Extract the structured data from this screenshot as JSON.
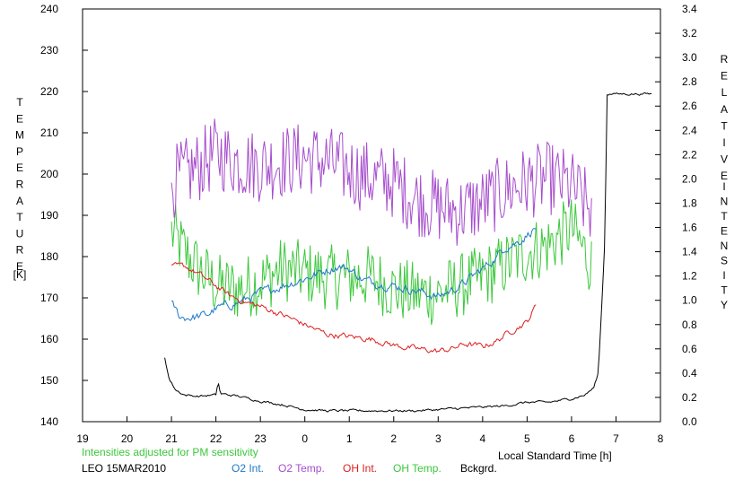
{
  "chart_data": {
    "type": "line",
    "x_axis": {
      "label": "Local Standard Time [h]",
      "range": [
        19,
        32
      ],
      "ticks": [
        "19",
        "20",
        "21",
        "22",
        "23",
        "0",
        "1",
        "2",
        "3",
        "4",
        "5",
        "6",
        "7",
        "8"
      ]
    },
    "y_left": {
      "label": [
        "T",
        "E",
        "M",
        "P",
        "E",
        "R",
        "A",
        "T",
        "U",
        "R",
        "E"
      ],
      "unit": "[K]",
      "range": [
        140,
        240
      ],
      "ticks": [
        "140",
        "150",
        "160",
        "170",
        "180",
        "190",
        "200",
        "210",
        "220",
        "230",
        "240"
      ]
    },
    "y_right": {
      "label": [
        "R",
        "E",
        "L",
        "A",
        "T",
        "I",
        "V",
        "E"
      ],
      "label2": [
        "I",
        "N",
        "T",
        "E",
        "N",
        "S",
        "I",
        "T",
        "Y"
      ],
      "range": [
        0,
        3.4
      ],
      "ticks": [
        "0.0",
        "0.2",
        "0.4",
        "0.6",
        "0.8",
        "1.0",
        "1.2",
        "1.4",
        "1.6",
        "1.8",
        "2.0",
        "2.2",
        "2.4",
        "2.6",
        "2.8",
        "3.0",
        "3.2",
        "3.4"
      ]
    },
    "note": "Intensities adjusted for PM sensitivity",
    "station": "LEO 15MAR2010",
    "legend": [
      {
        "name": "O2 Int.",
        "color": "#1f78c8"
      },
      {
        "name": "O2 Temp.",
        "color": "#a64dcc"
      },
      {
        "name": "OH Int.",
        "color": "#dd2020"
      },
      {
        "name": "OH Temp.",
        "color": "#3cc83c"
      },
      {
        "name": "Bckgrd.",
        "color": "#000000"
      }
    ],
    "series": [
      {
        "name": "O2 Temp.",
        "axis": "left",
        "color": "#a64dcc",
        "x_range": [
          21.0,
          30.45
        ],
        "points": [
          [
            21.0,
            198
          ],
          [
            21.5,
            201
          ],
          [
            22.0,
            205
          ],
          [
            22.5,
            203
          ],
          [
            23.0,
            202
          ],
          [
            23.5,
            203
          ],
          [
            24.0,
            204
          ],
          [
            24.5,
            203
          ],
          [
            25.0,
            201
          ],
          [
            25.5,
            199
          ],
          [
            26.0,
            198
          ],
          [
            26.5,
            194
          ],
          [
            27.0,
            192
          ],
          [
            27.5,
            191
          ],
          [
            28.0,
            193
          ],
          [
            28.5,
            196
          ],
          [
            29.0,
            198
          ],
          [
            29.5,
            199
          ],
          [
            30.0,
            197
          ],
          [
            30.45,
            191
          ]
        ],
        "jitter": 9
      },
      {
        "name": "OH Temp.",
        "axis": "left",
        "color": "#3cc83c",
        "x_range": [
          21.0,
          30.45
        ],
        "points": [
          [
            21.0,
            186
          ],
          [
            21.3,
            181
          ],
          [
            21.6,
            177
          ],
          [
            22.0,
            173
          ],
          [
            22.5,
            172
          ],
          [
            23.0,
            174
          ],
          [
            23.5,
            177
          ],
          [
            24.0,
            176
          ],
          [
            24.5,
            175
          ],
          [
            25.0,
            175
          ],
          [
            25.5,
            175
          ],
          [
            26.0,
            172
          ],
          [
            26.5,
            171
          ],
          [
            27.0,
            171
          ],
          [
            27.5,
            173
          ],
          [
            28.0,
            175
          ],
          [
            28.5,
            178
          ],
          [
            29.0,
            181
          ],
          [
            29.5,
            183
          ],
          [
            30.0,
            187
          ],
          [
            30.45,
            178
          ]
        ],
        "jitter": 8
      },
      {
        "name": "O2 Int.",
        "axis": "right",
        "color": "#1f78c8",
        "x_range": [
          21.0,
          29.2
        ],
        "points": [
          [
            21.0,
            0.97
          ],
          [
            21.2,
            0.86
          ],
          [
            21.5,
            0.86
          ],
          [
            21.8,
            0.88
          ],
          [
            22.0,
            0.93
          ],
          [
            22.5,
            0.98
          ],
          [
            23.0,
            1.06
          ],
          [
            23.5,
            1.12
          ],
          [
            24.0,
            1.18
          ],
          [
            24.5,
            1.25
          ],
          [
            24.75,
            1.28
          ],
          [
            25.0,
            1.26
          ],
          [
            25.3,
            1.17
          ],
          [
            25.5,
            1.15
          ],
          [
            26.0,
            1.12
          ],
          [
            26.5,
            1.08
          ],
          [
            27.0,
            1.03
          ],
          [
            27.5,
            1.12
          ],
          [
            28.0,
            1.26
          ],
          [
            28.3,
            1.35
          ],
          [
            28.5,
            1.44
          ],
          [
            28.8,
            1.48
          ],
          [
            29.0,
            1.54
          ],
          [
            29.2,
            1.6
          ]
        ],
        "jitter": 0.03
      },
      {
        "name": "OH Int.",
        "axis": "right",
        "color": "#dd2020",
        "x_range": [
          21.0,
          29.2
        ],
        "points": [
          [
            21.0,
            1.27
          ],
          [
            21.3,
            1.28
          ],
          [
            21.6,
            1.22
          ],
          [
            22.0,
            1.12
          ],
          [
            22.3,
            1.04
          ],
          [
            22.7,
            0.98
          ],
          [
            23.0,
            0.95
          ],
          [
            23.5,
            0.88
          ],
          [
            24.0,
            0.8
          ],
          [
            24.5,
            0.72
          ],
          [
            25.0,
            0.7
          ],
          [
            25.5,
            0.68
          ],
          [
            26.0,
            0.63
          ],
          [
            26.5,
            0.6
          ],
          [
            27.0,
            0.58
          ],
          [
            27.3,
            0.6
          ],
          [
            27.6,
            0.64
          ],
          [
            28.0,
            0.62
          ],
          [
            28.3,
            0.66
          ],
          [
            28.6,
            0.74
          ],
          [
            29.0,
            0.82
          ],
          [
            29.2,
            0.96
          ]
        ],
        "jitter": 0.02
      },
      {
        "name": "Bckgrd.",
        "axis": "right",
        "color": "#000000",
        "x_range": [
          20.85,
          31.8
        ],
        "points": [
          [
            20.85,
            0.53
          ],
          [
            20.95,
            0.35
          ],
          [
            21.1,
            0.26
          ],
          [
            21.3,
            0.22
          ],
          [
            21.6,
            0.21
          ],
          [
            22.0,
            0.22
          ],
          [
            22.05,
            0.33
          ],
          [
            22.1,
            0.23
          ],
          [
            22.5,
            0.21
          ],
          [
            23.0,
            0.17
          ],
          [
            23.5,
            0.14
          ],
          [
            24.0,
            0.1
          ],
          [
            24.5,
            0.09
          ],
          [
            25.0,
            0.09
          ],
          [
            25.5,
            0.09
          ],
          [
            26.0,
            0.09
          ],
          [
            26.5,
            0.09
          ],
          [
            27.0,
            0.1
          ],
          [
            27.5,
            0.11
          ],
          [
            28.0,
            0.12
          ],
          [
            28.5,
            0.13
          ],
          [
            29.0,
            0.16
          ],
          [
            29.5,
            0.16
          ],
          [
            30.0,
            0.19
          ],
          [
            30.3,
            0.22
          ],
          [
            30.5,
            0.28
          ],
          [
            30.6,
            0.4
          ],
          [
            30.7,
            1.1
          ],
          [
            30.75,
            1.5
          ],
          [
            30.8,
            2.7
          ]
        ],
        "jitter": 0.008
      }
    ]
  }
}
